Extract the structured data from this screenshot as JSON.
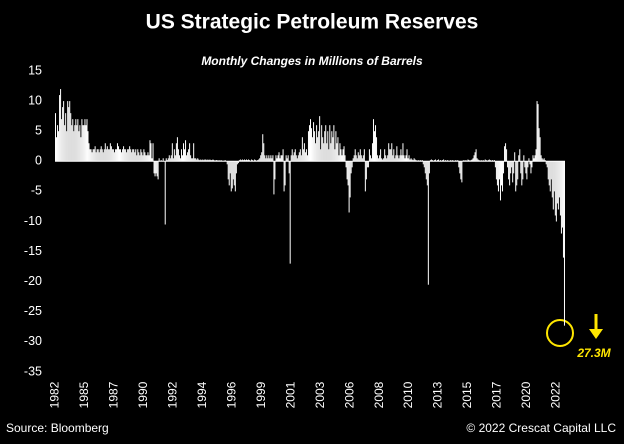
{
  "chart_data": {
    "type": "bar",
    "title": "US Strategic Petroleum Reserves",
    "subtitle": "Monthly Changes in Millions of Barrels",
    "source": "Source: Bloomberg",
    "credit": "© 2022 Crescat Capital LLC",
    "annotation": "27.3M",
    "color": "#ffffff",
    "ylim": [
      -35,
      15
    ],
    "yticks": [
      -35,
      -30,
      -25,
      -20,
      -15,
      -10,
      -5,
      0,
      5,
      10,
      15
    ],
    "categories": [
      "1982",
      null,
      null,
      null,
      null,
      null,
      null,
      null,
      null,
      null,
      null,
      null,
      null,
      null,
      null,
      null,
      null,
      null,
      null,
      null,
      null,
      null,
      null,
      null,
      null,
      null,
      null,
      null,
      null,
      "1985",
      null,
      null,
      null,
      null,
      null,
      null,
      null,
      null,
      null,
      null,
      null,
      null,
      null,
      null,
      null,
      null,
      null,
      null,
      null,
      null,
      null,
      null,
      null,
      null,
      null,
      null,
      null,
      null,
      "1987",
      null,
      null,
      null,
      null,
      null,
      null,
      null,
      null,
      null,
      null,
      null,
      null,
      null,
      null,
      null,
      null,
      null,
      null,
      null,
      null,
      null,
      null,
      null,
      null,
      null,
      null,
      null,
      null,
      "1990",
      null,
      null,
      null,
      null,
      null,
      null,
      null,
      null,
      null,
      null,
      null,
      null,
      null,
      null,
      null,
      null,
      null,
      null,
      null,
      null,
      null,
      null,
      null,
      null,
      null,
      null,
      null,
      null,
      "1992",
      null,
      null,
      null,
      null,
      null,
      null,
      null,
      null,
      null,
      null,
      null,
      null,
      null,
      null,
      null,
      null,
      null,
      null,
      null,
      null,
      null,
      null,
      null,
      null,
      null,
      null,
      null,
      null,
      "1994",
      null,
      null,
      null,
      null,
      null,
      null,
      null,
      null,
      null,
      null,
      null,
      null,
      null,
      null,
      null,
      null,
      null,
      null,
      null,
      null,
      null,
      null,
      null,
      null,
      null,
      null,
      null,
      null,
      "1996",
      null,
      null,
      null,
      null,
      null,
      null,
      null,
      null,
      null,
      null,
      null,
      null,
      null,
      null,
      null,
      null,
      null,
      null,
      null,
      null,
      null,
      null,
      null,
      null,
      null,
      null,
      null,
      null,
      "1999",
      null,
      null,
      null,
      null,
      null,
      null,
      null,
      null,
      null,
      null,
      null,
      null,
      null,
      null,
      null,
      null,
      null,
      null,
      null,
      null,
      null,
      null,
      null,
      null,
      null,
      null,
      null,
      null,
      "2001",
      null,
      null,
      null,
      null,
      null,
      null,
      null,
      null,
      null,
      null,
      null,
      null,
      null,
      null,
      null,
      null,
      null,
      null,
      null,
      null,
      null,
      null,
      null,
      null,
      null,
      null,
      null,
      null,
      "2003",
      null,
      null,
      null,
      null,
      null,
      null,
      null,
      null,
      null,
      null,
      null,
      null,
      null,
      null,
      null,
      null,
      null,
      null,
      null,
      null,
      null,
      null,
      null,
      null,
      null,
      null,
      null,
      null,
      "2006",
      null,
      null,
      null,
      null,
      null,
      null,
      null,
      null,
      null,
      null,
      null,
      null,
      null,
      null,
      null,
      null,
      null,
      null,
      null,
      null,
      null,
      null,
      null,
      null,
      null,
      null,
      null,
      null,
      "2008",
      null,
      null,
      null,
      null,
      null,
      null,
      null,
      null,
      null,
      null,
      null,
      null,
      null,
      null,
      null,
      null,
      null,
      null,
      null,
      null,
      null,
      null,
      null,
      null,
      null,
      null,
      null,
      null,
      "2010",
      null,
      null,
      null,
      null,
      null,
      null,
      null,
      null,
      null,
      null,
      null,
      null,
      null,
      null,
      null,
      null,
      null,
      null,
      null,
      null,
      null,
      null,
      null,
      null,
      null,
      null,
      null,
      null,
      "2013",
      null,
      null,
      null,
      null,
      null,
      null,
      null,
      null,
      null,
      null,
      null,
      null,
      null,
      null,
      null,
      null,
      null,
      null,
      null,
      null,
      null,
      null,
      null,
      null,
      null,
      null,
      null,
      null,
      "2015",
      null,
      null,
      null,
      null,
      null,
      null,
      null,
      null,
      null,
      null,
      null,
      null,
      null,
      null,
      null,
      null,
      null,
      null,
      null,
      null,
      null,
      null,
      null,
      null,
      null,
      null,
      null,
      null,
      "2017",
      null,
      null,
      null,
      null,
      null,
      null,
      null,
      null,
      null,
      null,
      null,
      null,
      null,
      null,
      null,
      null,
      null,
      null,
      null,
      null,
      null,
      null,
      null,
      null,
      null,
      null,
      null,
      null,
      "2020",
      null,
      null,
      null,
      null,
      null,
      null,
      null,
      null,
      null,
      null,
      null,
      null,
      null,
      null,
      null,
      null,
      null,
      null,
      null,
      null,
      null,
      null,
      null,
      null,
      null,
      null,
      null,
      null,
      "2022",
      null,
      null,
      null,
      null,
      null,
      null,
      null,
      null
    ],
    "values": [
      8,
      4,
      6,
      5,
      11,
      12,
      7,
      9,
      10,
      6,
      8,
      5,
      10,
      9,
      10,
      8,
      6,
      7,
      5,
      6,
      7,
      6,
      7,
      5,
      6,
      4,
      7,
      6,
      6,
      7,
      6,
      7,
      5,
      3,
      2,
      2,
      1.5,
      2,
      2,
      2.5,
      1.5,
      2,
      2,
      1.5,
      2,
      2.5,
      2,
      1.5,
      2,
      3,
      2,
      2.5,
      2,
      2,
      3,
      2.5,
      2,
      2,
      1.5,
      2,
      2,
      3,
      2.5,
      2,
      2,
      1.5,
      2,
      2.5,
      2,
      2,
      1.5,
      2,
      2,
      2.5,
      2,
      1.5,
      2,
      2,
      1.5,
      2,
      1,
      2,
      1.5,
      1,
      2,
      1.5,
      1,
      2,
      1.5,
      1,
      1,
      1.5,
      1,
      3.5,
      3,
      0.5,
      3,
      -2,
      -2.5,
      -2,
      -2.5,
      -3,
      0.5,
      0,
      0.2,
      0,
      0.5,
      0,
      -10.5,
      0.5,
      0.2,
      0.5,
      1,
      0.5,
      1,
      3,
      0.5,
      2,
      1,
      3,
      4,
      2,
      1,
      0.5,
      2,
      1,
      3,
      2,
      3.5,
      1,
      1.5,
      2,
      3,
      1,
      0.5,
      0.5,
      3,
      0.5,
      0.5,
      0.3,
      0.5,
      0.3,
      0.2,
      0.3,
      0.2,
      0.3,
      0.2,
      0.3,
      0.3,
      0.2,
      0.3,
      0.2,
      0.3,
      0.2,
      0.2,
      0.3,
      0.2,
      0.1,
      0.2,
      0.2,
      0.1,
      0.2,
      0.1,
      0.2,
      0.1,
      0.1,
      0.1,
      0.2,
      0,
      -0.5,
      -3,
      -4,
      -2,
      -5,
      -4.5,
      -3,
      -4,
      -5,
      -2,
      -0.5,
      -0.3,
      0.2,
      0.3,
      0.2,
      0.3,
      0.2,
      0.3,
      0.2,
      0.3,
      0.2,
      0.3,
      0.2,
      0.1,
      0.3,
      0.2,
      0.1,
      0.3,
      0.2,
      0.1,
      0.2,
      0.3,
      0.5,
      1,
      1.5,
      4.5,
      3,
      1,
      0.5,
      1,
      0.5,
      1,
      0.5,
      1,
      0.5,
      1,
      -5.5,
      -3,
      1,
      0.5,
      1,
      1.5,
      0.5,
      1,
      1,
      2,
      -5,
      -4,
      1,
      0.5,
      1,
      -2,
      -17,
      1,
      2,
      1,
      1.5,
      2,
      1,
      0.5,
      1,
      1.5,
      2,
      1,
      4,
      2,
      3,
      1.5,
      2,
      1,
      5,
      6,
      7,
      5.5,
      4,
      6.5,
      5,
      3,
      6,
      4,
      5,
      7.5,
      2,
      6,
      4,
      3,
      5,
      6,
      3,
      5,
      2,
      6,
      3,
      5,
      4,
      6,
      2,
      5,
      3,
      4,
      1,
      3,
      2,
      1,
      2,
      2.5,
      1,
      -1,
      -3,
      -4,
      -8.5,
      -6,
      -2,
      -1,
      0.5,
      1,
      2,
      1,
      0.5,
      1.5,
      1,
      2,
      1,
      0.5,
      1,
      2,
      -5,
      -3,
      -1,
      -1,
      2,
      1,
      0.5,
      3,
      7,
      5,
      6,
      4,
      1,
      0.5,
      1,
      2,
      0.5,
      0.3,
      0.5,
      2,
      1,
      0.5,
      1,
      3,
      2,
      2,
      3,
      1,
      2,
      0.5,
      1,
      2.5,
      1,
      0.5,
      1,
      2,
      1,
      3,
      1,
      0.5,
      1,
      2,
      0.5,
      1,
      0.3,
      0.5,
      0.3,
      0.2,
      0.5,
      0.3,
      0.2,
      0.1,
      0.2,
      0.1,
      0.2,
      0.1,
      0.2,
      -0.5,
      -1,
      -2,
      -3,
      -4,
      -20.5,
      -2,
      0.2,
      0.3,
      0.2,
      0.1,
      0.2,
      0.3,
      0.1,
      0.2,
      0.3,
      0.1,
      0.2,
      0.1,
      0.2,
      0.3,
      0.1,
      0.2,
      0.1,
      0.2,
      0.1,
      0.1,
      0.2,
      0.1,
      0.2,
      0.1,
      0.1,
      0.2,
      0.1,
      0.2,
      -1,
      -2,
      -3,
      -3.5,
      0.1,
      0.2,
      0.1,
      0.2,
      0.1,
      0.3,
      0.2,
      0.1,
      0.2,
      0.3,
      0.5,
      1,
      1.5,
      2,
      0.5,
      0.3,
      0.2,
      0.1,
      0.2,
      0.1,
      0.2,
      0.1,
      0.3,
      0.2,
      0.1,
      0.2,
      0.3,
      0.2,
      0.1,
      0.2,
      0.1,
      0.2,
      -1,
      -3,
      -4,
      -5,
      -3,
      -6.5,
      -4,
      -5,
      -2,
      2.5,
      3,
      2,
      -1,
      -3,
      -4,
      -2,
      -1,
      -3.5,
      -2,
      1.5,
      -5,
      -4,
      -3,
      1,
      2,
      -2,
      -4,
      -3,
      1,
      -1,
      -2,
      -3,
      -1,
      0.5,
      -0.5,
      -2,
      -1,
      1,
      0.5,
      1,
      2,
      10,
      9.5,
      5.5,
      4,
      1,
      0.5,
      0.3,
      0.5,
      0.2,
      -0.5,
      -1,
      -3,
      -4,
      -5,
      -3,
      -6,
      -8,
      -5,
      -9,
      -10,
      -7,
      -8,
      -6,
      -9,
      -12,
      -11,
      -16,
      -27.3
    ]
  }
}
